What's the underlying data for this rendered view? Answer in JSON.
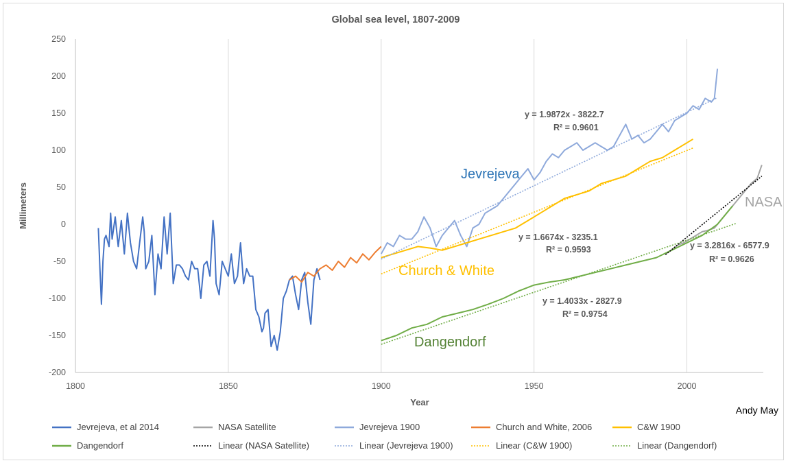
{
  "chart_data": {
    "type": "line",
    "title": "Global sea level, 1807-2009",
    "xlabel": "Year",
    "ylabel": "Millimeters",
    "xlim": [
      1800,
      2025
    ],
    "ylim": [
      -200,
      250
    ],
    "x_ticks": [
      "1800",
      "1850",
      "1900",
      "1950",
      "2000"
    ],
    "y_ticks": [
      "250",
      "200",
      "150",
      "100",
      "50",
      "0",
      "-50",
      "-100",
      "-150",
      "-200"
    ],
    "grid": "vertical",
    "credit": "Andy May",
    "series": [
      {
        "name": "Jevrejeva, et al 2014",
        "color": "#4472C4",
        "x": [
          1807.5,
          1808,
          1808.5,
          1809,
          1809.5,
          1810,
          1811,
          1811.5,
          1812,
          1813,
          1814,
          1815,
          1816,
          1817,
          1818,
          1819,
          1820,
          1821,
          1822,
          1822.5,
          1823,
          1824,
          1825,
          1826,
          1827,
          1828,
          1829,
          1830,
          1831,
          1832,
          1833,
          1834,
          1835,
          1836,
          1837,
          1838,
          1839,
          1840,
          1841,
          1842,
          1843,
          1844,
          1845,
          1845.5,
          1846,
          1847,
          1848,
          1849,
          1850,
          1851,
          1852,
          1853,
          1854,
          1855,
          1856,
          1857,
          1858,
          1859,
          1860,
          1861,
          1861.5,
          1862,
          1863,
          1864,
          1865,
          1866,
          1867,
          1868,
          1869,
          1870,
          1871,
          1872,
          1873,
          1874,
          1875,
          1876,
          1877,
          1878,
          1879,
          1880
        ],
        "y": [
          -5,
          -60,
          -108,
          -50,
          -20,
          -15,
          -30,
          15,
          -20,
          10,
          -30,
          5,
          -40,
          15,
          -25,
          -50,
          -60,
          -25,
          10,
          -10,
          -60,
          -50,
          -15,
          -95,
          -40,
          -60,
          10,
          -40,
          15,
          -80,
          -55,
          -55,
          -60,
          -70,
          -75,
          -50,
          -60,
          -60,
          -100,
          -55,
          -50,
          -70,
          5,
          -20,
          -80,
          -95,
          -50,
          -60,
          -70,
          -40,
          -80,
          -70,
          -25,
          -80,
          -60,
          -70,
          -70,
          -115,
          -125,
          -145,
          -140,
          -120,
          -115,
          -165,
          -150,
          -170,
          -145,
          -100,
          -90,
          -75,
          -70,
          -95,
          -115,
          -75,
          -65,
          -105,
          -135,
          -75,
          -60,
          -75
        ]
      },
      {
        "name": "NASA Satellite",
        "color": "#A5A5A5",
        "x": [
          1993,
          1995,
          1997,
          1999,
          2001,
          2003,
          2005,
          2007,
          2009,
          2011,
          2013,
          2015,
          2017,
          2019,
          2021,
          2023,
          2024.5
        ],
        "y": [
          -40,
          -35,
          -28,
          -25,
          -20,
          -15,
          -10,
          -8,
          -5,
          5,
          15,
          25,
          35,
          45,
          55,
          62,
          80
        ]
      },
      {
        "name": "Jevrejeva 1900",
        "color": "#8EA9DB",
        "x": [
          1900,
          1902,
          1904,
          1906,
          1908,
          1910,
          1912,
          1914,
          1916,
          1918,
          1920,
          1922,
          1924,
          1926,
          1928,
          1930,
          1932,
          1934,
          1936,
          1938,
          1940,
          1942,
          1944,
          1946,
          1948,
          1950,
          1952,
          1954,
          1956,
          1958,
          1960,
          1962,
          1964,
          1966,
          1968,
          1970,
          1972,
          1974,
          1976,
          1978,
          1980,
          1982,
          1984,
          1986,
          1988,
          1990,
          1992,
          1994,
          1996,
          1998,
          2000,
          2002,
          2004,
          2006,
          2008,
          2009,
          2010
        ],
        "y": [
          -40,
          -25,
          -30,
          -15,
          -20,
          -20,
          -10,
          10,
          -5,
          -30,
          -15,
          -5,
          5,
          -15,
          -30,
          -5,
          0,
          15,
          20,
          25,
          35,
          45,
          55,
          65,
          75,
          60,
          70,
          85,
          95,
          90,
          100,
          105,
          110,
          100,
          105,
          110,
          105,
          100,
          105,
          120,
          135,
          115,
          120,
          110,
          115,
          125,
          135,
          125,
          140,
          145,
          150,
          160,
          155,
          170,
          165,
          170,
          210
        ]
      },
      {
        "name": "Church and White, 2006",
        "color": "#ED7D31",
        "x": [
          1870,
          1872,
          1874,
          1876,
          1878,
          1880,
          1882,
          1884,
          1886,
          1888,
          1890,
          1892,
          1894,
          1896,
          1898,
          1900
        ],
        "y": [
          -75,
          -70,
          -78,
          -65,
          -70,
          -60,
          -55,
          -62,
          -50,
          -58,
          -45,
          -52,
          -40,
          -48,
          -38,
          -30
        ]
      },
      {
        "name": "C&W 1900",
        "color": "#FFC000",
        "x": [
          1900,
          1904,
          1908,
          1912,
          1916,
          1920,
          1924,
          1928,
          1932,
          1936,
          1940,
          1944,
          1948,
          1952,
          1956,
          1960,
          1964,
          1968,
          1972,
          1976,
          1980,
          1984,
          1988,
          1992,
          1996,
          2000,
          2002
        ],
        "y": [
          -45,
          -40,
          -35,
          -30,
          -32,
          -35,
          -30,
          -25,
          -20,
          -15,
          -10,
          -5,
          5,
          15,
          25,
          35,
          40,
          45,
          55,
          60,
          65,
          75,
          85,
          90,
          100,
          110,
          115
        ]
      },
      {
        "name": "Dangendorf",
        "color": "#70AD47",
        "x": [
          1900,
          1905,
          1910,
          1915,
          1920,
          1925,
          1930,
          1935,
          1940,
          1945,
          1950,
          1955,
          1960,
          1965,
          1970,
          1975,
          1980,
          1985,
          1990,
          1995,
          2000,
          2005,
          2010,
          2015
        ],
        "y": [
          -157,
          -150,
          -140,
          -135,
          -125,
          -120,
          -115,
          -108,
          -100,
          -90,
          -82,
          -78,
          -75,
          -70,
          -65,
          -60,
          -55,
          -50,
          -45,
          -35,
          -25,
          -15,
          0,
          25
        ]
      }
    ],
    "trendlines": [
      {
        "name": "Linear (NASA Satellite)",
        "color": "#000000",
        "x": [
          1993,
          2024.5
        ],
        "y": [
          -41,
          65
        ]
      },
      {
        "name": "Linear (Jevrejeva 1900)",
        "color": "#8EA9DB",
        "x": [
          1900,
          2010
        ],
        "y": [
          -47,
          171
        ]
      },
      {
        "name": "Linear (C&W 1900)",
        "color": "#FFC000",
        "x": [
          1900,
          2002
        ],
        "y": [
          -67,
          103
        ]
      },
      {
        "name": "Linear (Dangendorf)",
        "color": "#70AD47",
        "x": [
          1900,
          2016
        ],
        "y": [
          -162,
          1
        ]
      }
    ],
    "equations": [
      {
        "line1": "y = 1.9872x - 3822.7",
        "line2": "R² = 0.9601"
      },
      {
        "line1": "y = 1.6674x - 3235.1",
        "line2": "R² = 0.9593"
      },
      {
        "line1": "y = 3.2816x - 6577.9",
        "line2": "R² = 0.9626"
      },
      {
        "line1": "y = 1.4033x - 2827.9",
        "line2": "R² = 0.9754"
      }
    ],
    "annotations": [
      {
        "text": "Jevrejeva",
        "color": "#2E75B6"
      },
      {
        "text": "Church & White",
        "color": "#FFC000"
      },
      {
        "text": "NASA",
        "color": "#A5A5A5"
      },
      {
        "text": "Dangendorf",
        "color": "#548235"
      }
    ],
    "legend": {
      "placement": "bottom",
      "entries": [
        "Jevrejeva, et al 2014",
        "NASA Satellite",
        "Jevrejeva 1900",
        "Church and White, 2006",
        "C&W 1900",
        "Dangendorf",
        "Linear (NASA Satellite)",
        "Linear (Jevrejeva 1900)",
        "Linear (C&W 1900)",
        "Linear (Dangendorf)"
      ]
    }
  }
}
